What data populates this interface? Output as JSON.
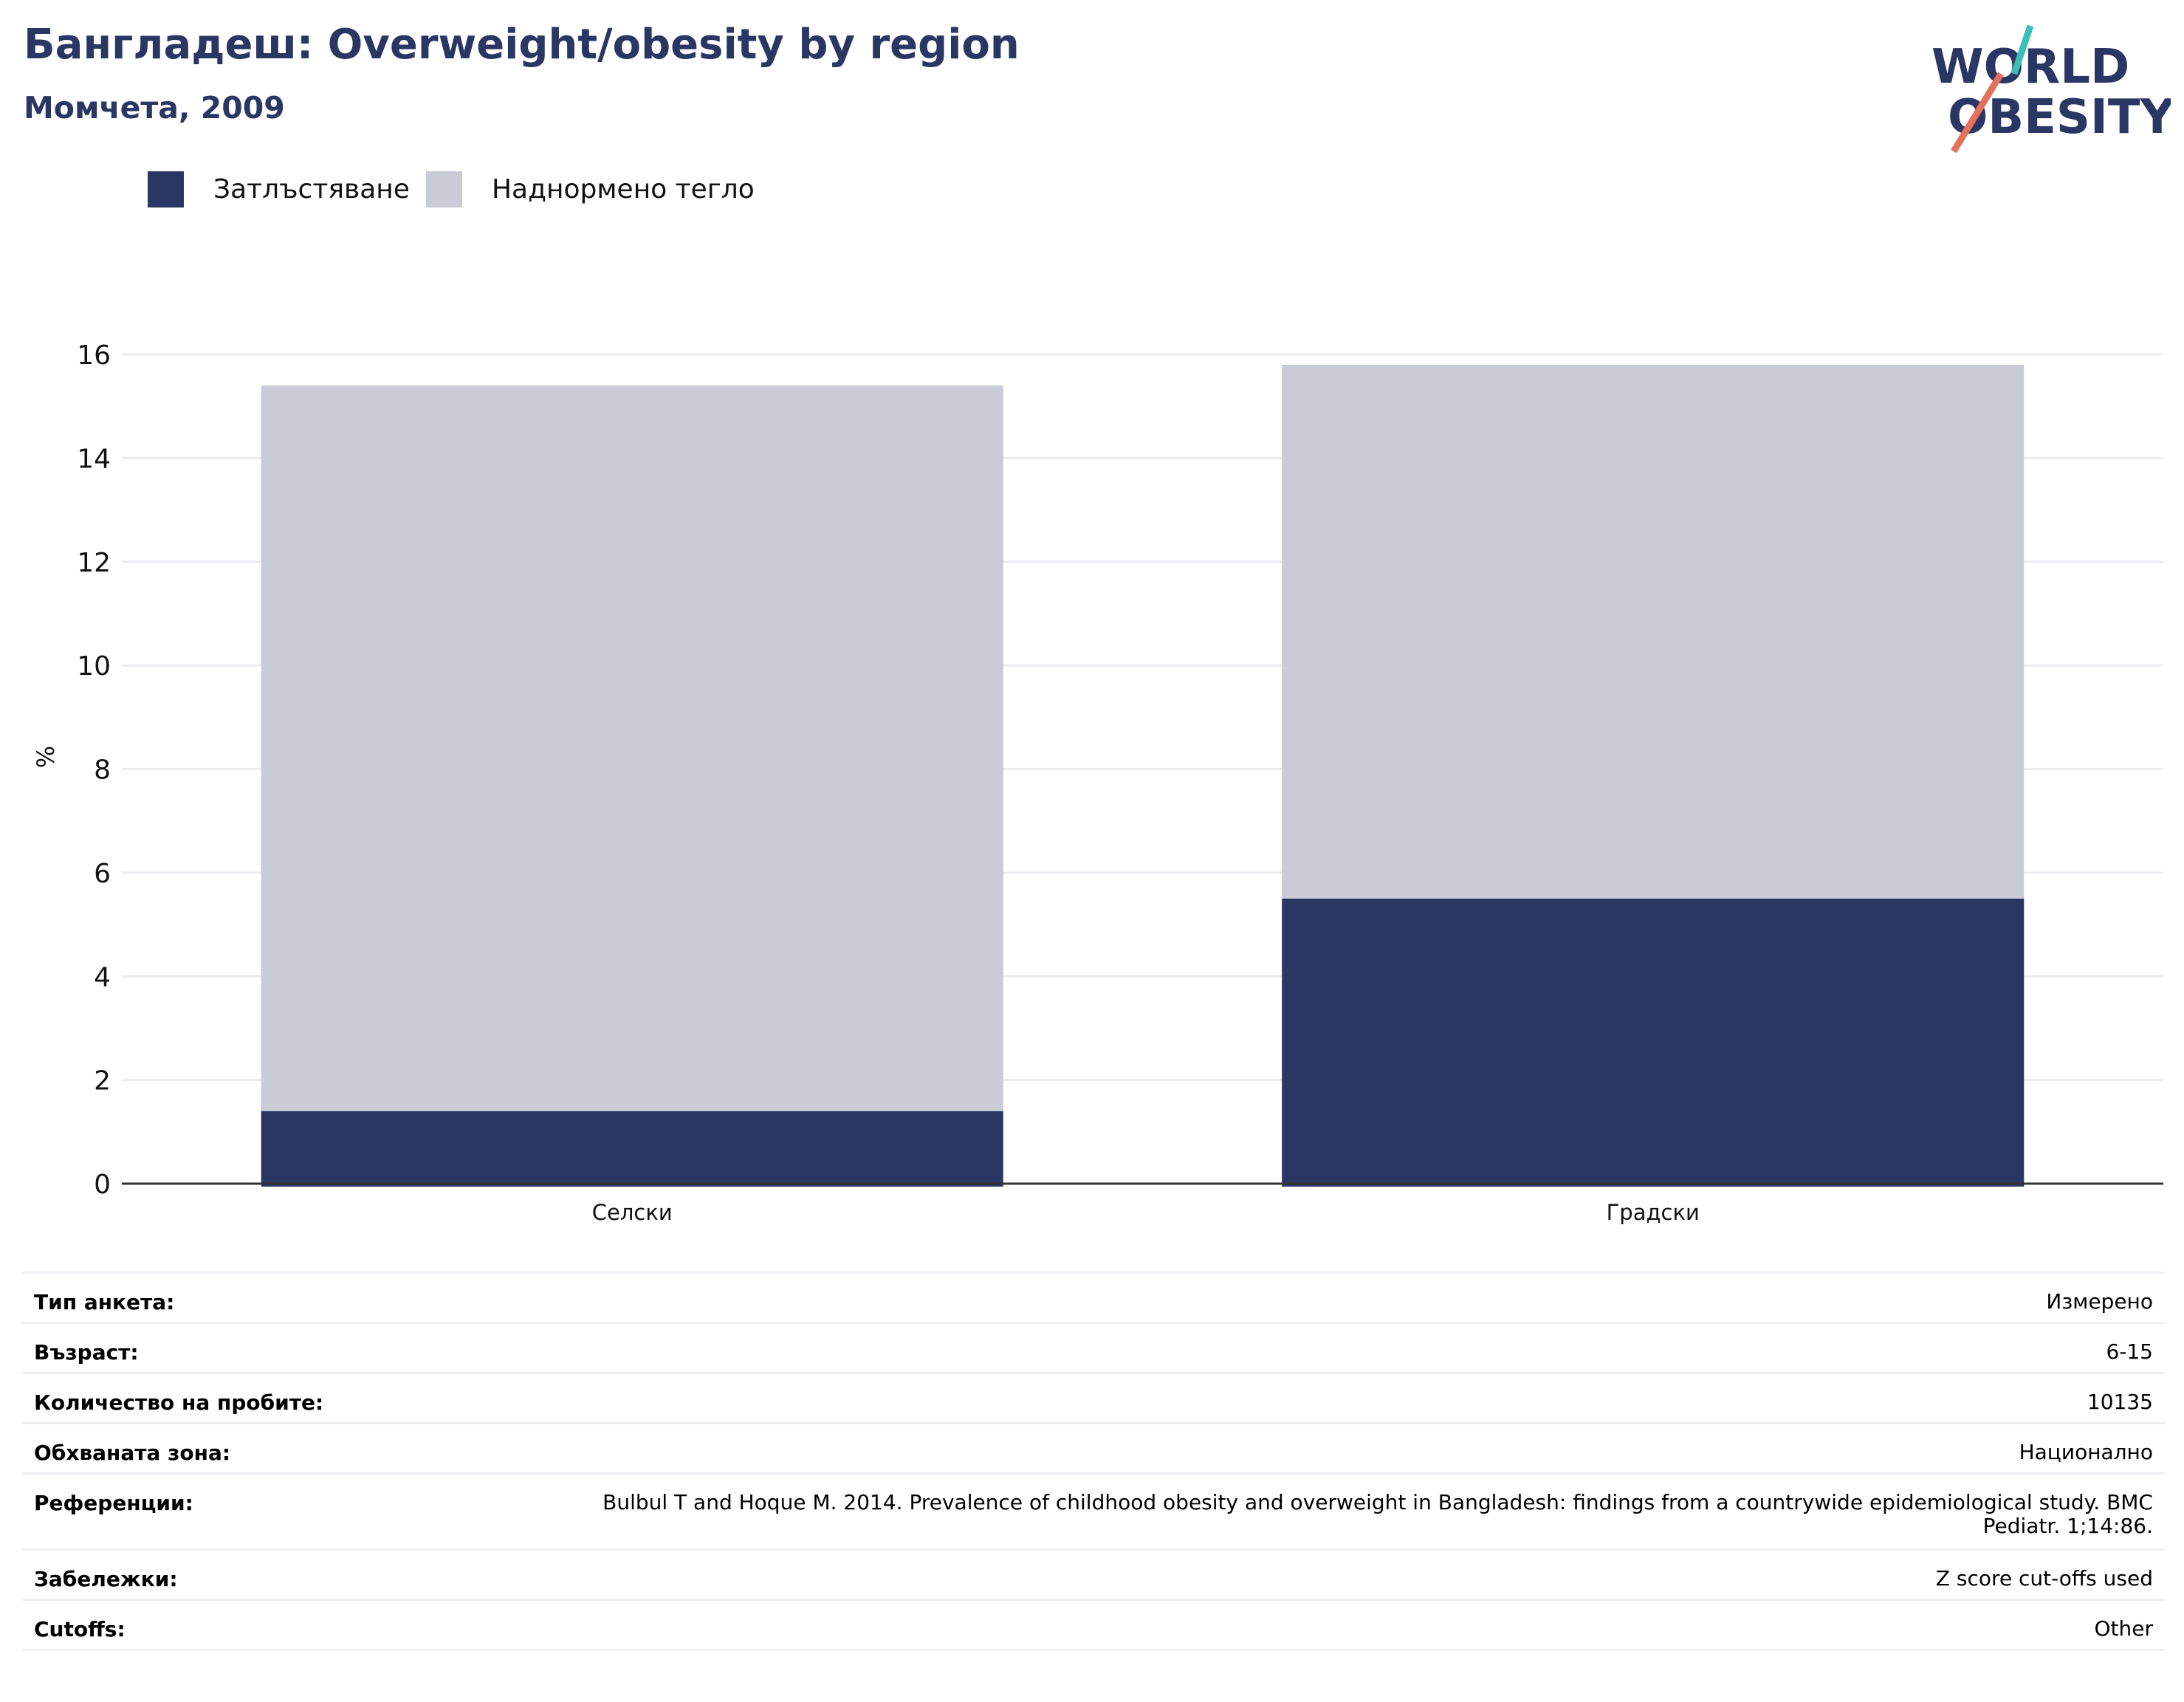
{
  "header": {
    "title": "Бангладеш: Overweight/obesity by region",
    "subtitle": "Момчета, 2009"
  },
  "logo": {
    "line1": "WORLD",
    "line2": "OBESITY",
    "colors": {
      "text": "#2a3663",
      "teal": "#3bbfb6",
      "coral": "#e5705c"
    }
  },
  "chart_data": {
    "type": "bar",
    "stacked": true,
    "categories": [
      "Селски",
      "Градски"
    ],
    "series": [
      {
        "name": "Затлъстяване",
        "values": [
          1.4,
          5.5
        ],
        "color": "#2a3663"
      },
      {
        "name": "Наднормено тегло",
        "values": [
          14.0,
          10.3
        ],
        "color": "#c9cbd7"
      }
    ],
    "ylabel": "%",
    "ylim": [
      0,
      16
    ],
    "yticks": [
      0,
      2,
      4,
      6,
      8,
      10,
      12,
      14,
      16
    ],
    "grid": true,
    "legend_position": "top-left"
  },
  "details": [
    {
      "label": "Тип анкета:",
      "value": "Измерено"
    },
    {
      "label": "Възраст:",
      "value": "6-15"
    },
    {
      "label": "Количество на пробите:",
      "value": "10135"
    },
    {
      "label": "Обхваната зона:",
      "value": "Национално"
    },
    {
      "label": "Референции:",
      "value": "Bulbul T and Hoque M. 2014. Prevalence of childhood obesity and overweight in Bangladesh: findings from a countrywide epidemiological study. BMC Pediatr. 1;14:86."
    },
    {
      "label": "Забележки:",
      "value": "Z score cut-offs used"
    },
    {
      "label": "Cutoffs:",
      "value": "Other"
    }
  ]
}
